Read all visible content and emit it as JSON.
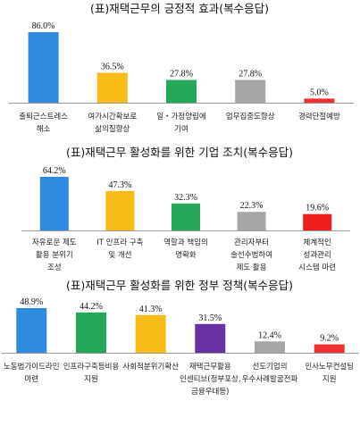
{
  "chart_data": [
    {
      "type": "bar",
      "title": "(표)재택근무의 긍정적 효과(복수응답)",
      "categories": [
        [
          "출퇴근스트레스",
          "해소"
        ],
        [
          "여가시간확보로",
          "삶의질향상"
        ],
        [
          "일・가정양립에",
          "기여"
        ],
        [
          "업무집중도향상"
        ],
        [
          "경력단절예방"
        ]
      ],
      "values": [
        86.0,
        36.5,
        27.8,
        27.8,
        5.0
      ],
      "value_labels": [
        "86.0%",
        "36.5%",
        "27.8%",
        "27.8%",
        "5.0%"
      ],
      "colors": [
        "#2f8be0",
        "#f7bc17",
        "#26a85a",
        "#a6a6a6",
        "#ee2f2f"
      ],
      "ylim": [
        0,
        86.0
      ]
    },
    {
      "type": "bar",
      "title": "(표)재택근무 활성화를 위한 기업 조치(복수응답)",
      "categories": [
        [
          "자유로운 제도",
          "활용 분위기",
          "조성"
        ],
        [
          "IT 인프라 구축",
          "및 개선"
        ],
        [
          "역할과 책임의",
          "명확화"
        ],
        [
          "관리자부터",
          "솔선수범하여",
          "제도 활용"
        ],
        [
          "체계적인",
          "성과관리",
          "시스템 마련"
        ]
      ],
      "values": [
        64.2,
        47.3,
        32.3,
        22.3,
        19.6
      ],
      "value_labels": [
        "64.2%",
        "47.3%",
        "32.3%",
        "22.3%",
        "19.6%"
      ],
      "colors": [
        "#2f8be0",
        "#f7bc17",
        "#26a85a",
        "#a6a6a6",
        "#ee1c1c"
      ],
      "ylim": [
        0,
        64.2
      ]
    },
    {
      "type": "bar",
      "title": "(표)재택근무 활성화를 위한 정부 정책(복수응답)",
      "categories": [
        [
          "노동법가이드라인",
          "마련"
        ],
        [
          "인프라구축등비용",
          "지원"
        ],
        [
          "사회적분위기확산"
        ],
        [
          "재택근무활용",
          "인센티브(정부포상,",
          "금융우대등)"
        ],
        [
          "선도기업의",
          "우수사례발굴전파"
        ],
        [
          "인사노무컨설팅",
          "지원"
        ]
      ],
      "values": [
        48.9,
        44.2,
        41.3,
        31.5,
        12.4,
        9.2
      ],
      "value_labels": [
        "48.9%",
        "44.2%",
        "41.3%",
        "31.5%",
        "12.4%",
        "9.2%"
      ],
      "colors": [
        "#2f8be0",
        "#26a85a",
        "#f7bc17",
        "#6a2fa0",
        "#a6a6a6",
        "#ee2f2f"
      ],
      "ylim": [
        0,
        48.9
      ]
    }
  ]
}
